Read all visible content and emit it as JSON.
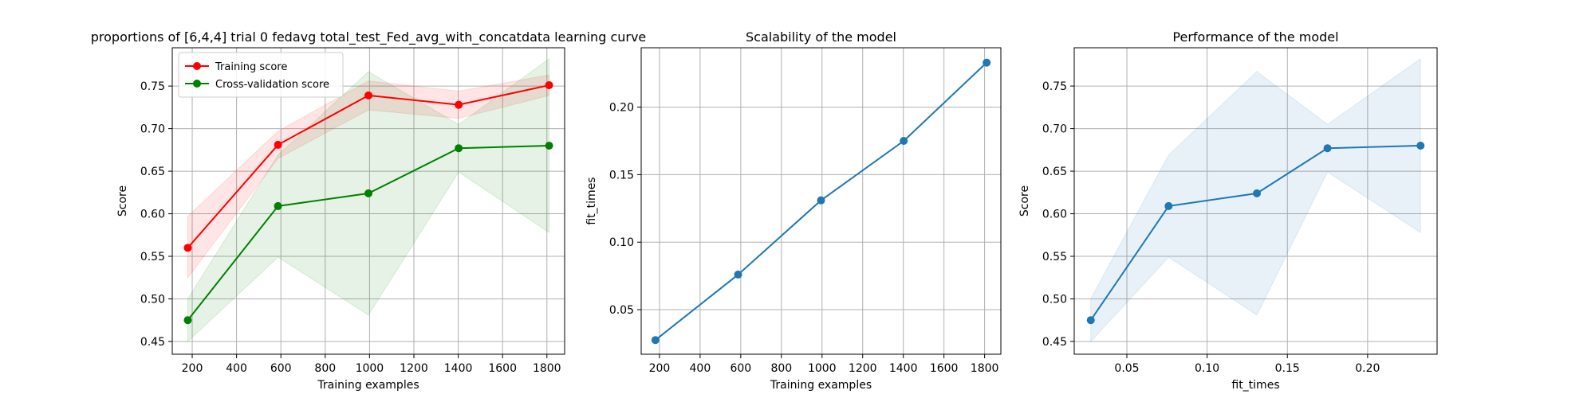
{
  "chart_data": [
    {
      "type": "line",
      "title": "proportions of [6,4,4] trial 0 fedavg total_test_Fed_avg_with_concatdata learning curve",
      "xlabel": "Training examples",
      "ylabel": "Score",
      "xlim": [
        110,
        1880
      ],
      "ylim": [
        0.435,
        0.795
      ],
      "xticks": [
        200,
        400,
        600,
        800,
        1000,
        1200,
        1400,
        1600,
        1800
      ],
      "yticks": [
        0.45,
        0.5,
        0.55,
        0.6,
        0.65,
        0.7,
        0.75
      ],
      "grid": true,
      "legend": "upper-left",
      "x": [
        180,
        587,
        995,
        1402,
        1810
      ],
      "series": [
        {
          "name": "Training score",
          "color": "#ff0000",
          "values": [
            0.56,
            0.681,
            0.739,
            0.728,
            0.751
          ],
          "band_low": [
            0.525,
            0.665,
            0.722,
            0.712,
            0.739
          ],
          "band_high": [
            0.597,
            0.697,
            0.756,
            0.744,
            0.763
          ]
        },
        {
          "name": "Cross-validation score",
          "color": "#008000",
          "values": [
            0.475,
            0.609,
            0.624,
            0.677,
            0.68
          ],
          "band_low": [
            0.45,
            0.549,
            0.481,
            0.649,
            0.578
          ],
          "band_high": [
            0.5,
            0.669,
            0.767,
            0.705,
            0.782
          ]
        }
      ]
    },
    {
      "type": "line",
      "title": "Scalability of the model",
      "xlabel": "Training examples",
      "ylabel": "fit_times",
      "xlim": [
        110,
        1880
      ],
      "ylim": [
        0.017,
        0.244
      ],
      "xticks": [
        200,
        400,
        600,
        800,
        1000,
        1200,
        1400,
        1600,
        1800
      ],
      "yticks": [
        0.05,
        0.1,
        0.15,
        0.2
      ],
      "grid": true,
      "x": [
        180,
        587,
        995,
        1402,
        1810
      ],
      "series": [
        {
          "color": "#1f77b4",
          "values": [
            0.0275,
            0.076,
            0.131,
            0.175,
            0.233
          ]
        }
      ]
    },
    {
      "type": "line",
      "title": "Performance of the model",
      "xlabel": "fit_times",
      "ylabel": "Score",
      "xlim": [
        0.0172,
        0.2433
      ],
      "ylim": [
        0.435,
        0.795
      ],
      "xticks": [
        0.05,
        0.1,
        0.15,
        0.2
      ],
      "yticks": [
        0.45,
        0.5,
        0.55,
        0.6,
        0.65,
        0.7,
        0.75
      ],
      "grid": true,
      "x": [
        0.0275,
        0.076,
        0.131,
        0.175,
        0.233
      ],
      "series": [
        {
          "color": "#1f77b4",
          "values": [
            0.475,
            0.609,
            0.624,
            0.677,
            0.68
          ],
          "band_low": [
            0.45,
            0.549,
            0.481,
            0.649,
            0.578
          ],
          "band_high": [
            0.5,
            0.669,
            0.767,
            0.705,
            0.782
          ]
        }
      ]
    }
  ]
}
